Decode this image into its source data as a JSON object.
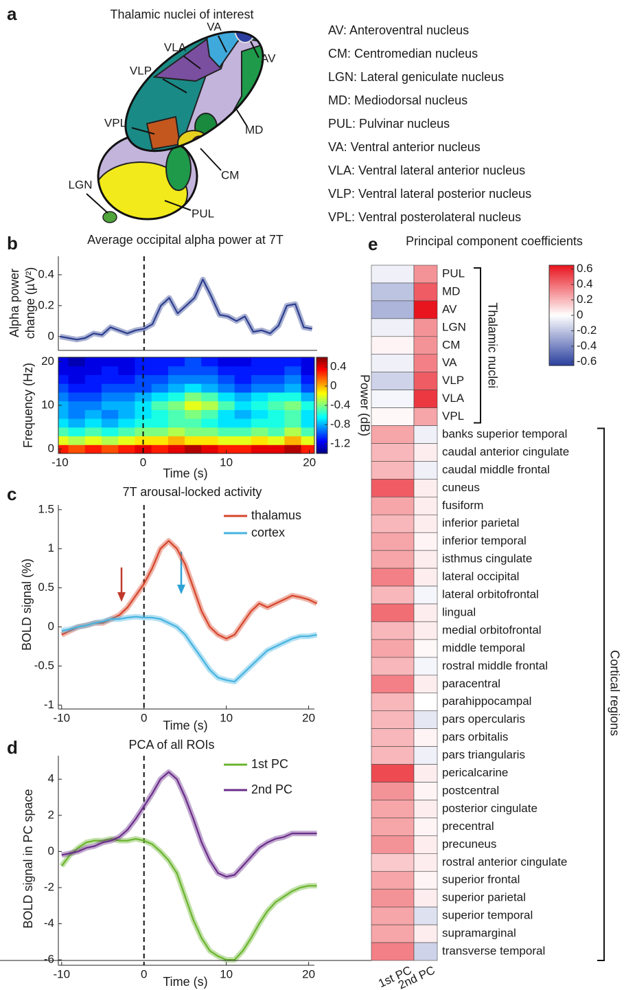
{
  "panel_a": {
    "label": "a",
    "title": "Thalamic nuclei of interest",
    "regions": [
      "VA",
      "VLA",
      "VLP",
      "AV",
      "VPL",
      "MD",
      "CM",
      "LGN",
      "PUL"
    ],
    "legend": [
      "AV: Anteroventral nucleus",
      "CM: Centromedian nucleus",
      "LGN: Lateral geniculate nucleus",
      "MD: Mediodorsal nucleus",
      "PUL: Pulvinar nucleus",
      "VA: Ventral anterior nucleus",
      "VLA: Ventral lateral anterior nucleus",
      "VLP: Ventral lateral posterior nucleus",
      "VPL: Ventral posterolateral nucleus"
    ]
  },
  "chart_data": [
    {
      "type": "line",
      "label": "b",
      "title": "Average occipital alpha power at 7T",
      "ylabel": [
        "Alpha power",
        "change  (µV²)"
      ],
      "x": [
        -10,
        -9,
        -8,
        -7,
        -6,
        -5,
        -4,
        -3,
        -2,
        -1,
        0,
        1,
        2,
        3,
        4,
        5,
        6,
        7,
        8,
        9,
        10,
        11,
        12,
        13,
        14,
        15,
        16,
        17,
        18,
        19,
        20
      ],
      "series": [
        {
          "color": "#2b3d8f",
          "values": [
            0,
            -0.01,
            -0.02,
            -0.01,
            0.02,
            0.01,
            0.06,
            0.04,
            0.02,
            0.04,
            0.05,
            0.08,
            0.2,
            0.25,
            0.15,
            0.2,
            0.25,
            0.37,
            0.26,
            0.14,
            0.13,
            0.1,
            0.13,
            0.03,
            0.04,
            0.02,
            0.07,
            0.2,
            0.21,
            0.06,
            0.05
          ]
        }
      ],
      "xlim": [
        -10.2,
        20.6
      ],
      "ylim": [
        -0.09,
        0.52
      ],
      "yticks": [
        0,
        0.2,
        0.4
      ],
      "vline": 0
    },
    {
      "type": "heatmap",
      "xlabel": "Time (s)",
      "ylabel": "Frequency (Hz)",
      "x": [
        -10,
        -8,
        -6,
        -4,
        -2,
        0,
        2,
        4,
        6,
        8,
        10,
        12,
        14,
        16,
        18,
        20
      ],
      "y": [
        0,
        2,
        4,
        6,
        8,
        10,
        12,
        14,
        16,
        18,
        20
      ],
      "z": [
        [
          0.3,
          0.2,
          0.3,
          0.2,
          0.3,
          0.4,
          0.3,
          0.4,
          0.5,
          0.4,
          0.3,
          0.3,
          0.4,
          0.4,
          0.5,
          0.3
        ],
        [
          -0.2,
          -0.3,
          -0.2,
          -0.3,
          -0.2,
          -0.1,
          -0.1,
          0,
          -0.1,
          -0.1,
          -0.2,
          -0.2,
          -0.1,
          -0.2,
          0,
          -0.2
        ],
        [
          -0.5,
          -0.6,
          -0.5,
          -0.6,
          -0.5,
          -0.4,
          -0.4,
          -0.3,
          -0.4,
          -0.4,
          -0.5,
          -0.5,
          -0.4,
          -0.5,
          -0.3,
          -0.5
        ],
        [
          -0.7,
          -0.8,
          -0.7,
          -0.8,
          -0.7,
          -0.6,
          -0.6,
          -0.5,
          -0.5,
          -0.6,
          -0.7,
          -0.7,
          -0.6,
          -0.6,
          -0.5,
          -0.7
        ],
        [
          -0.8,
          -0.9,
          -0.8,
          -0.9,
          -0.8,
          -0.7,
          -0.6,
          -0.5,
          -0.4,
          -0.5,
          -0.7,
          -0.8,
          -0.7,
          -0.6,
          -0.5,
          -0.7
        ],
        [
          -0.8,
          -0.9,
          -0.9,
          -0.8,
          -0.8,
          -0.7,
          -0.5,
          -0.4,
          -0.2,
          -0.3,
          -0.5,
          -0.7,
          -0.6,
          -0.5,
          -0.4,
          -0.6
        ],
        [
          -0.9,
          -1.0,
          -1.0,
          -0.9,
          -0.9,
          -0.8,
          -0.7,
          -0.6,
          -0.4,
          -0.5,
          -0.7,
          -0.8,
          -0.7,
          -0.6,
          -0.6,
          -0.8
        ],
        [
          -1.0,
          -1.1,
          -1.1,
          -1.0,
          -1.0,
          -1.0,
          -0.9,
          -0.8,
          -0.7,
          -0.8,
          -0.9,
          -1.0,
          -0.9,
          -0.9,
          -0.8,
          -1.0
        ],
        [
          -1.1,
          -1.2,
          -1.1,
          -1.1,
          -1.1,
          -1.0,
          -1.0,
          -0.9,
          -0.9,
          -0.9,
          -1.0,
          -1.1,
          -1.0,
          -1.0,
          -0.9,
          -1.1
        ],
        [
          -1.2,
          -1.2,
          -1.2,
          -1.1,
          -1.2,
          -1.1,
          -1.1,
          -1.0,
          -1.0,
          -1.0,
          -1.1,
          -1.1,
          -1.1,
          -1.1,
          -1.0,
          -1.2
        ],
        [
          -1.2,
          -1.3,
          -1.2,
          -1.2,
          -1.2,
          -1.1,
          -1.1,
          -1.1,
          -1.0,
          -1.1,
          -1.2,
          -1.2,
          -1.1,
          -1.1,
          -1.1,
          -1.2
        ]
      ],
      "xlim": [
        -10.2,
        20.6
      ],
      "ylim": [
        -1,
        21
      ],
      "xticks": [
        -10,
        0,
        10,
        20
      ],
      "yticks": [
        0,
        10,
        20
      ],
      "clim": [
        -1.4,
        0.6
      ],
      "cticks": [
        0.4,
        0,
        -0.4,
        -0.8,
        -1.2
      ],
      "clabel": "Power (dB)",
      "colormap": "jet",
      "vline": 0
    },
    {
      "type": "line",
      "label": "c",
      "title": "7T arousal-locked activity",
      "xlabel": "Time (s)",
      "ylabel": "BOLD signal (%)",
      "x": [
        -10,
        -9,
        -8,
        -7,
        -6,
        -5,
        -4,
        -3,
        -2,
        -1,
        0,
        1,
        2,
        3,
        4,
        5,
        6,
        7,
        8,
        9,
        10,
        11,
        12,
        13,
        14,
        15,
        16,
        17,
        18,
        19,
        20,
        21
      ],
      "series": [
        {
          "name": "thalamus",
          "color": "#d6452b",
          "values": [
            -0.1,
            -0.05,
            0,
            0.02,
            0.05,
            0.05,
            0.1,
            0.15,
            0.25,
            0.4,
            0.55,
            0.75,
            1.0,
            1.1,
            1.0,
            0.8,
            0.5,
            0.2,
            0,
            -0.1,
            -0.15,
            -0.1,
            0.05,
            0.2,
            0.3,
            0.25,
            0.3,
            0.35,
            0.4,
            0.38,
            0.35,
            0.3
          ]
        },
        {
          "name": "cortex",
          "color": "#45b3e0",
          "values": [
            -0.05,
            -0.03,
            0,
            0.02,
            0.05,
            0.07,
            0.1,
            0.1,
            0.12,
            0.13,
            0.12,
            0.12,
            0.1,
            0.05,
            0,
            -0.1,
            -0.25,
            -0.4,
            -0.55,
            -0.65,
            -0.68,
            -0.7,
            -0.6,
            -0.5,
            -0.4,
            -0.3,
            -0.25,
            -0.2,
            -0.15,
            -0.12,
            -0.12,
            -0.1
          ]
        }
      ],
      "xlim": [
        -10.4,
        20.7
      ],
      "ylim": [
        -1.05,
        1.56
      ],
      "xticks": [
        -10,
        0,
        10,
        20
      ],
      "yticks": [
        -1,
        -0.5,
        0,
        0.5,
        1,
        1.5
      ],
      "vline": 0
    },
    {
      "type": "line",
      "label": "d",
      "title": "PCA of all ROIs",
      "xlabel": "Time (s)",
      "ylabel": "BOLD signal in PC space",
      "x": [
        -10,
        -9,
        -8,
        -7,
        -6,
        -5,
        -4,
        -3,
        -2,
        -1,
        0,
        1,
        2,
        3,
        4,
        5,
        6,
        7,
        8,
        9,
        10,
        11,
        12,
        13,
        14,
        15,
        16,
        17,
        18,
        19,
        20,
        21
      ],
      "series": [
        {
          "name": "1st PC",
          "color": "#6ab42d",
          "values": [
            -0.8,
            -0.2,
            0.2,
            0.5,
            0.6,
            0.6,
            0.7,
            0.6,
            0.6,
            0.7,
            0.6,
            0.4,
            0,
            -0.5,
            -1.2,
            -2.5,
            -3.8,
            -4.8,
            -5.5,
            -5.8,
            -6.0,
            -6.0,
            -5.5,
            -4.8,
            -4.0,
            -3.3,
            -2.8,
            -2.5,
            -2.2,
            -2.0,
            -1.9,
            -1.9
          ]
        },
        {
          "name": "2nd PC",
          "color": "#6a2d8a",
          "values": [
            -0.2,
            -0.1,
            0,
            0.2,
            0.3,
            0.5,
            0.6,
            0.8,
            1.2,
            1.8,
            2.5,
            3.2,
            4.0,
            4.4,
            4.0,
            3.0,
            1.8,
            0.5,
            -0.5,
            -1.2,
            -1.4,
            -1.3,
            -0.8,
            -0.3,
            0.2,
            0.5,
            0.7,
            0.8,
            1.0,
            1.0,
            1.0,
            1.0
          ]
        }
      ],
      "xlim": [
        -10.4,
        20.7
      ],
      "ylim": [
        -6.3,
        5.3
      ],
      "xticks": [
        -10,
        0,
        10,
        20
      ],
      "yticks": [
        -6,
        -4,
        -2,
        0,
        2,
        4
      ],
      "vline": 0
    },
    {
      "type": "heatmap",
      "label": "e",
      "title": "Principal component coefficients",
      "categories": [
        "PUL",
        "MD",
        "AV",
        "LGN",
        "CM",
        "VA",
        "VLP",
        "VLA",
        "VPL",
        "banks superior temporal",
        "caudal anterior cingulate",
        "caudal middle frontal",
        "cuneus",
        "fusiform",
        "inferior parietal",
        "inferior temporal",
        "isthmus cingulate",
        "lateral occipital",
        "lateral orbitofrontal",
        "lingual",
        "medial orbitofrontal",
        "middle temporal",
        "rostral middle frontal",
        "paracentral",
        "parahippocampal",
        "pars opercularis",
        "pars orbitalis",
        "pars triangularis",
        "pericalcarine",
        "postcentral",
        "posterior cingulate",
        "precentral",
        "precuneus",
        "rostral anterior cingulate",
        "superior frontal",
        "superior parietal",
        "superior temporal",
        "supramarginal",
        "transverse temporal"
      ],
      "series": [
        {
          "name": "1st PC",
          "values": [
            -0.05,
            -0.2,
            -0.25,
            -0.05,
            0.03,
            -0.05,
            -0.15,
            -0.03,
            0.02,
            0.25,
            0.2,
            0.2,
            0.45,
            0.25,
            0.2,
            0.25,
            0.25,
            0.35,
            0.2,
            0.4,
            0.2,
            0.25,
            0.2,
            0.35,
            0.2,
            0.2,
            0.2,
            0.2,
            0.5,
            0.3,
            0.25,
            0.25,
            0.3,
            0.15,
            0.25,
            0.3,
            0.25,
            0.25,
            0.35
          ]
        },
        {
          "name": "2nd PC",
          "values": [
            0.3,
            0.45,
            0.65,
            0.3,
            0.3,
            0.35,
            0.45,
            0.55,
            0.25,
            -0.05,
            0.05,
            -0.05,
            0.05,
            0.05,
            0.05,
            0.03,
            0.05,
            0.05,
            -0.03,
            0.05,
            0.05,
            0.02,
            -0.03,
            0.05,
            0,
            -0.08,
            0.03,
            -0.05,
            0.05,
            0.03,
            0.05,
            0.03,
            0.05,
            0.05,
            0.03,
            0.05,
            -0.1,
            0.05,
            -0.15
          ]
        }
      ],
      "groups": [
        "Thalamic nuclei",
        "Cortical regions"
      ],
      "clim": [
        -0.65,
        0.65
      ],
      "cticks": [
        0.6,
        0.4,
        0.2,
        0,
        -0.2,
        -0.4,
        -0.6
      ],
      "colormap": "bwr"
    }
  ]
}
